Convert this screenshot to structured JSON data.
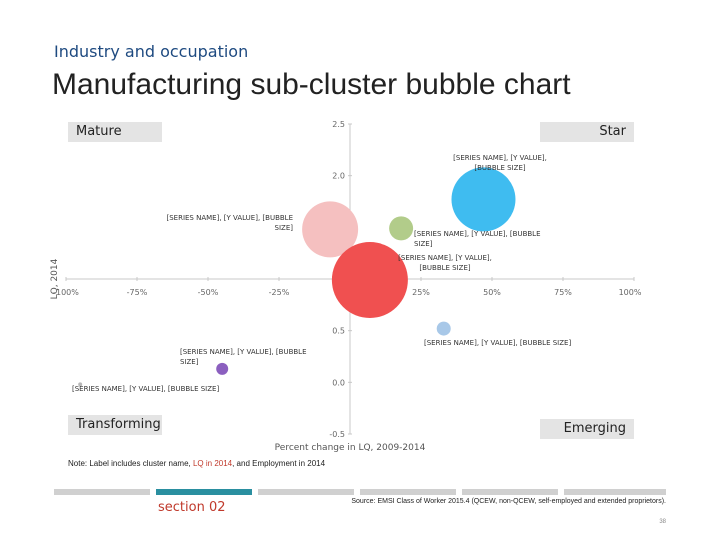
{
  "header": {
    "eyebrow": "Industry and occupation",
    "title": "Manufacturing sub-cluster bubble chart"
  },
  "quadrants": {
    "mature": "Mature",
    "star": "Star",
    "transforming": "Transforming",
    "emerging": "Emerging"
  },
  "chart_data": {
    "type": "scatter",
    "subtype": "bubble",
    "xlabel": "Percent change in LQ, 2009-2014",
    "ylabel": "LQ, 2014",
    "xlim": [
      -1.0,
      1.0
    ],
    "ylim": [
      -0.5,
      2.5
    ],
    "x_ticks": [
      "-100%",
      "-75%",
      "-50%",
      "-25%",
      "0%",
      "25%",
      "50%",
      "75%",
      "100%"
    ],
    "y_ticks": [
      "2.5",
      "2.0",
      "1.5",
      "1.0",
      "0.5",
      "0.0",
      "-0.5"
    ],
    "x_cross": 1.0,
    "grid": false,
    "points": [
      {
        "x": 0.47,
        "y": 1.77,
        "size": 32,
        "color": "#3fbcf0",
        "label": "[SERIES NAME], [Y VALUE], [BUBBLE SIZE]"
      },
      {
        "x": -0.07,
        "y": 1.48,
        "size": 28,
        "color": "#f5c0c0",
        "label": "[SERIES NAME], [Y VALUE], [BUBBLE SIZE]"
      },
      {
        "x": 0.18,
        "y": 1.49,
        "size": 12,
        "color": "#b2cc8a",
        "label": "[SERIES NAME], [Y VALUE], [BUBBLE SIZE]"
      },
      {
        "x": 0.07,
        "y": 0.99,
        "size": 38,
        "color": "#f05050",
        "label": "[SERIES NAME], [Y VALUE], [BUBBLE SIZE]"
      },
      {
        "x": 0.33,
        "y": 0.52,
        "size": 7,
        "color": "#a8c8e8",
        "label": "[SERIES NAME], [Y VALUE], [BUBBLE SIZE]"
      },
      {
        "x": -0.45,
        "y": 0.13,
        "size": 6,
        "color": "#8b5fbf",
        "label": "[SERIES NAME], [Y VALUE], [BUBBLE SIZE]"
      },
      {
        "x": -0.95,
        "y": -0.02,
        "size": 2,
        "color": "#b8b8b8",
        "label": "[SERIES NAME], [Y VALUE], [BUBBLE SIZE]"
      }
    ]
  },
  "note": {
    "prefix": "Note: Label includes cluster name, ",
    "highlight": "LQ in 2014",
    "suffix": ", and Employment in 2014"
  },
  "footer": {
    "section": "section 02",
    "source": "Source: EMSI Class of Worker 2015.4 (QCEW, non-QCEW, self-employed and extended proprietors).",
    "page": "38"
  }
}
